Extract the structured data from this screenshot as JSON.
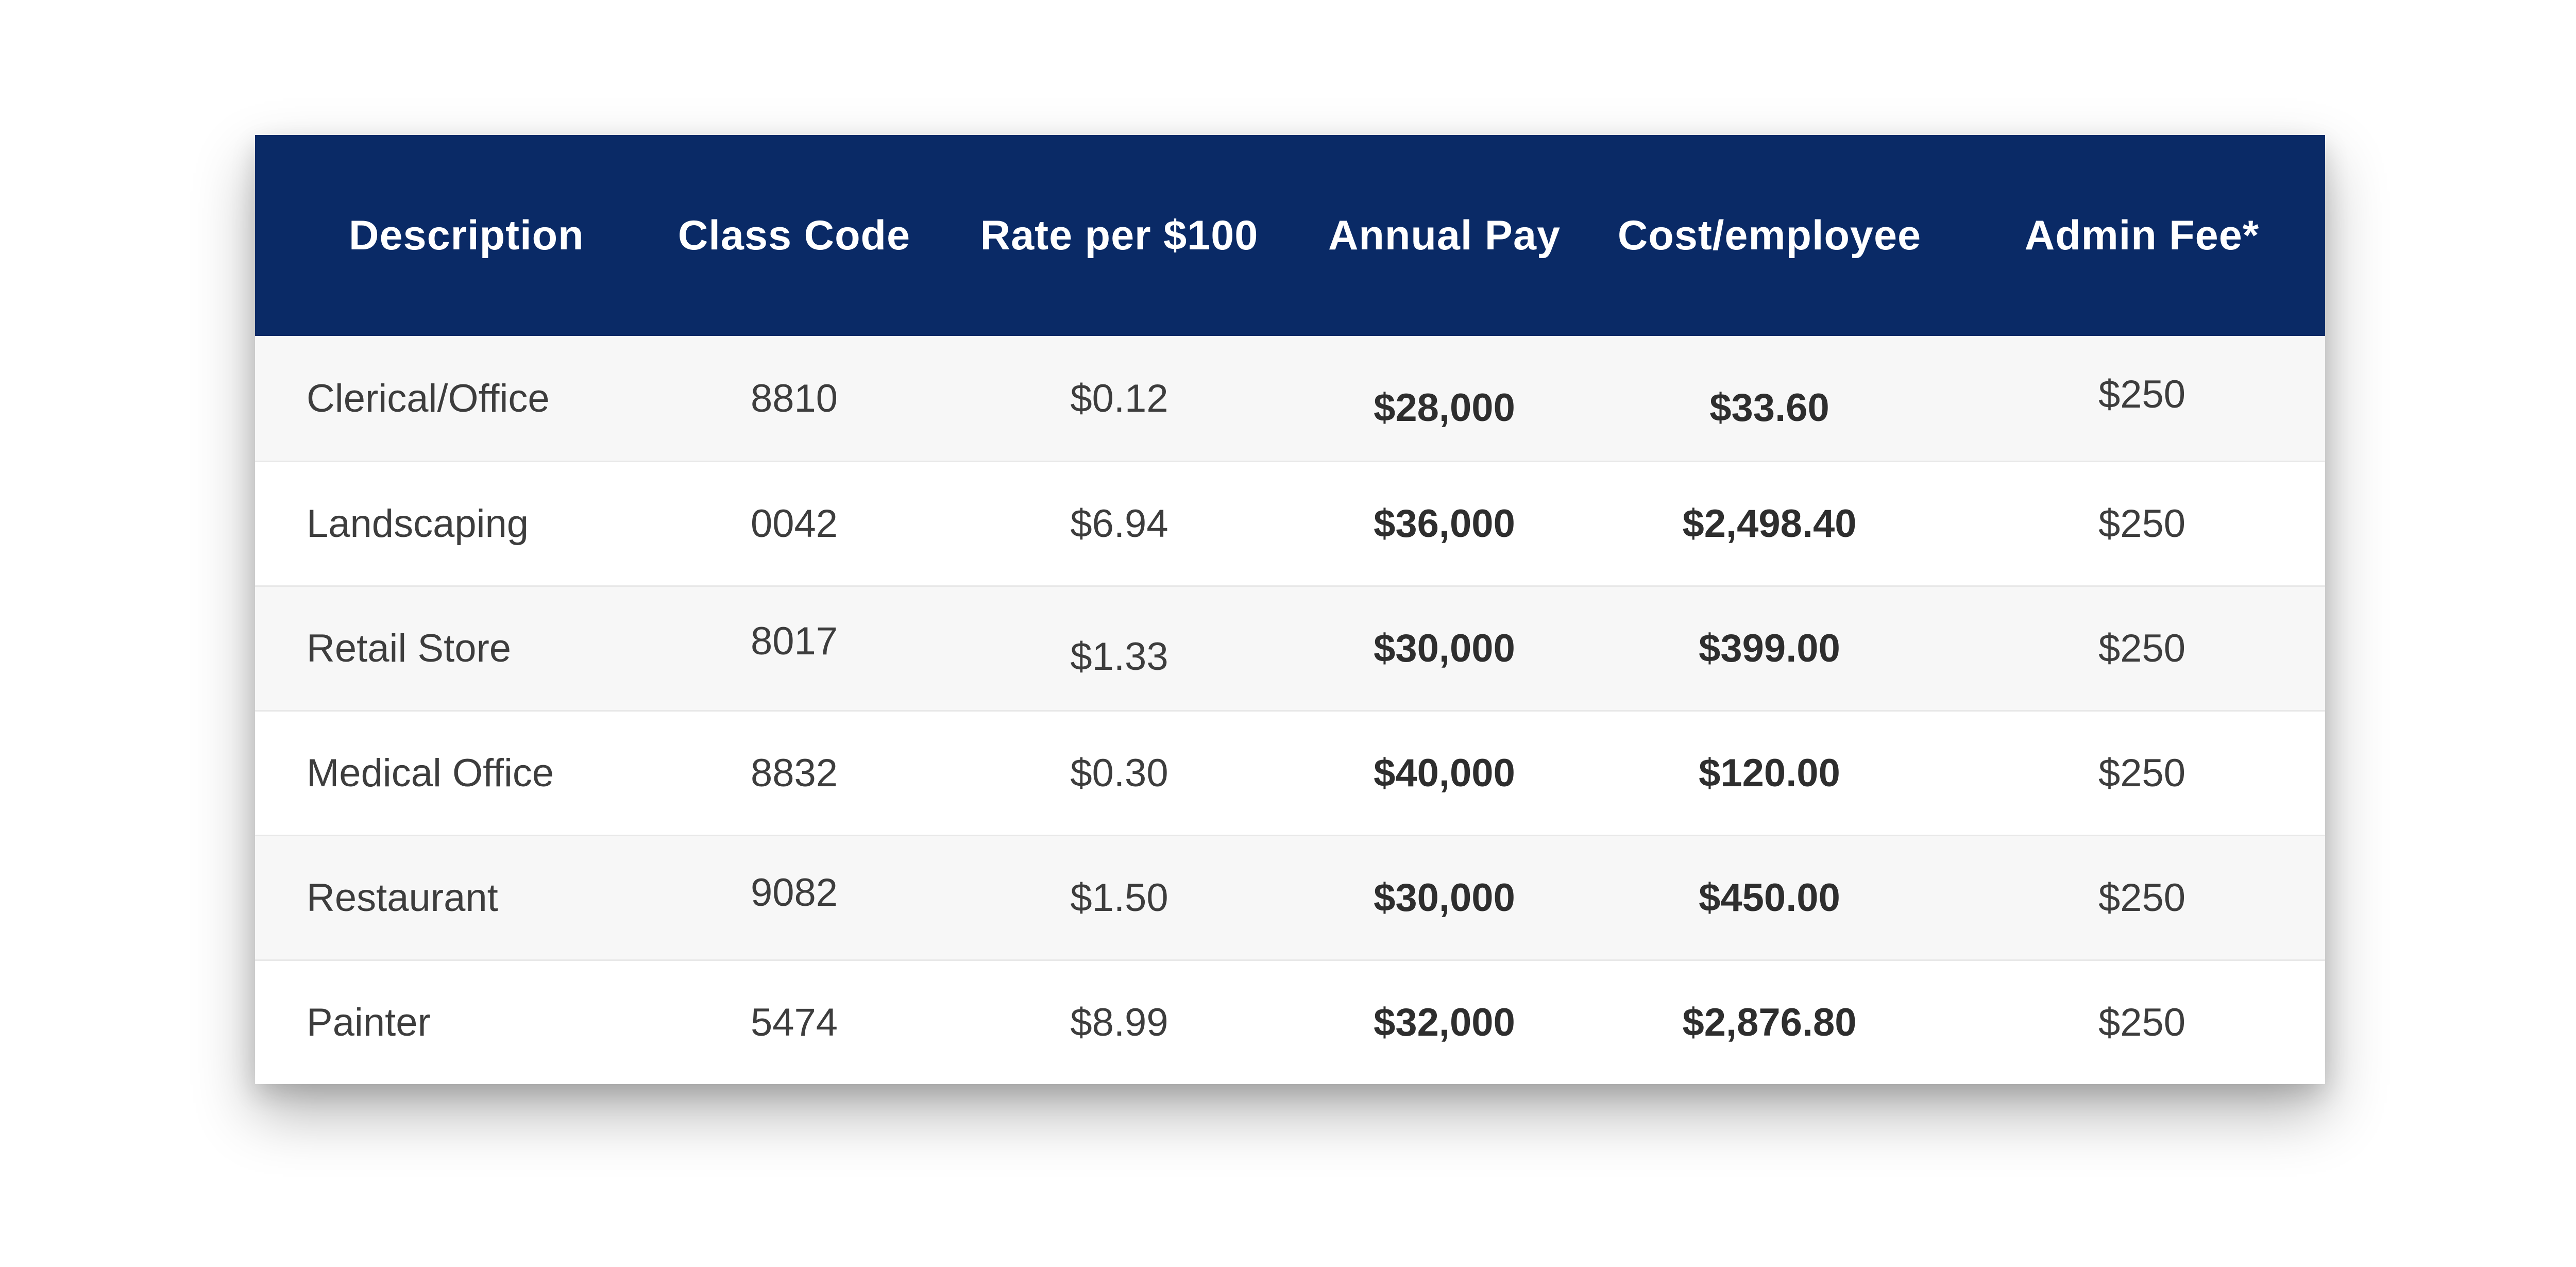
{
  "colors": {
    "header_bg": "#0A2A66",
    "header_text": "#FFFFFF",
    "row_alt_bg": "#F7F7F7",
    "row_bg": "#FFFFFF",
    "divider": "#E8E8E8",
    "body_text": "#3D3D3D"
  },
  "table": {
    "columns": [
      {
        "label": "Description"
      },
      {
        "label": "Class Code"
      },
      {
        "label": "Rate per $100"
      },
      {
        "label": "Annual Pay"
      },
      {
        "label": "Cost/employee"
      },
      {
        "label": "Admin Fee*"
      }
    ],
    "rows": [
      {
        "description": "Clerical/Office",
        "class_code": "8810",
        "rate": "$0.12",
        "annual_pay": "$28,000",
        "cost_per_employee": "$33.60",
        "admin_fee": "$250"
      },
      {
        "description": "Landscaping",
        "class_code": "0042",
        "rate": "$6.94",
        "annual_pay": "$36,000",
        "cost_per_employee": "$2,498.40",
        "admin_fee": "$250"
      },
      {
        "description": "Retail Store",
        "class_code": "8017",
        "rate": "$1.33",
        "annual_pay": "$30,000",
        "cost_per_employee": "$399.00",
        "admin_fee": "$250"
      },
      {
        "description": "Medical Office",
        "class_code": "8832",
        "rate": "$0.30",
        "annual_pay": "$40,000",
        "cost_per_employee": "$120.00",
        "admin_fee": "$250"
      },
      {
        "description": "Restaurant",
        "class_code": "9082",
        "rate": "$1.50",
        "annual_pay": "$30,000",
        "cost_per_employee": "$450.00",
        "admin_fee": "$250"
      },
      {
        "description": "Painter",
        "class_code": "5474",
        "rate": "$8.99",
        "annual_pay": "$32,000",
        "cost_per_employee": "$2,876.80",
        "admin_fee": "$250"
      }
    ]
  },
  "chart_data": {
    "type": "table",
    "title": "",
    "columns": [
      "Description",
      "Class Code",
      "Rate per $100",
      "Annual Pay",
      "Cost/employee",
      "Admin Fee*"
    ],
    "rows": [
      [
        "Clerical/Office",
        "8810",
        "$0.12",
        "$28,000",
        "$33.60",
        "$250"
      ],
      [
        "Landscaping",
        "0042",
        "$6.94",
        "$36,000",
        "$2,498.40",
        "$250"
      ],
      [
        "Retail Store",
        "8017",
        "$1.33",
        "$30,000",
        "$399.00",
        "$250"
      ],
      [
        "Medical Office",
        "8832",
        "$0.30",
        "$40,000",
        "$120.00",
        "$250"
      ],
      [
        "Restaurant",
        "9082",
        "$1.50",
        "$30,000",
        "$450.00",
        "$250"
      ],
      [
        "Painter",
        "5474",
        "$8.99",
        "$32,000",
        "$2,876.80",
        "$250"
      ]
    ]
  }
}
